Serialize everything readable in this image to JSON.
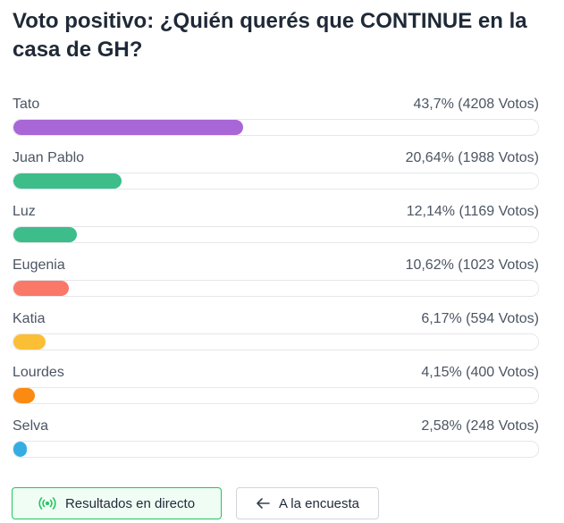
{
  "poll": {
    "title": "Voto positivo: ¿Quién querés que CONTINUE en la casa de GH?"
  },
  "options": [
    {
      "name": "Tato",
      "stats": "43,7% (4208 Votos)",
      "percent": 43.7,
      "color": "#a866d6"
    },
    {
      "name": "Juan Pablo",
      "stats": "20,64% (1988 Votos)",
      "percent": 20.64,
      "color": "#3dbd8a"
    },
    {
      "name": "Luz",
      "stats": "12,14% (1169 Votos)",
      "percent": 12.14,
      "color": "#3dbd8a"
    },
    {
      "name": "Eugenia",
      "stats": "10,62% (1023 Votos)",
      "percent": 10.62,
      "color": "#fa7868"
    },
    {
      "name": "Katia",
      "stats": "6,17% (594 Votos)",
      "percent": 6.17,
      "color": "#fbbf35"
    },
    {
      "name": "Lourdes",
      "stats": "4,15% (400 Votos)",
      "percent": 4.15,
      "color": "#fb8a12"
    },
    {
      "name": "Selva",
      "stats": "2,58% (248 Votos)",
      "percent": 2.58,
      "color": "#35ade3"
    }
  ],
  "actions": {
    "live_label": "Resultados en directo",
    "live_icon": "live-broadcast-icon",
    "back_label": "A la encuesta",
    "back_icon": "arrow-left-icon"
  }
}
